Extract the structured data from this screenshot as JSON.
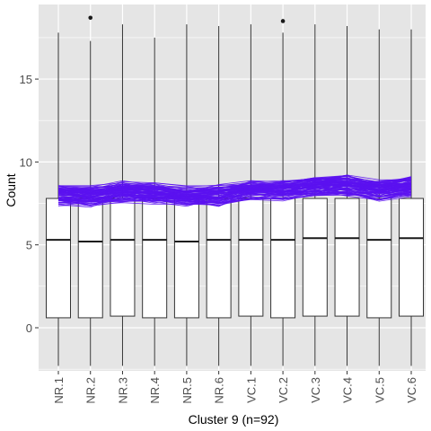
{
  "chart_data": {
    "type": "box",
    "title": "",
    "xlabel": "Cluster 9 (n=92)",
    "ylabel": "Count",
    "categories": [
      "NR.1",
      "NR.2",
      "NR.3",
      "NR.4",
      "NR.5",
      "NR.6",
      "VC.1",
      "VC.2",
      "VC.3",
      "VC.4",
      "VC.5",
      "VC.6"
    ],
    "ylim": [
      -2.6,
      19.5
    ],
    "yticks": [
      0,
      5,
      10,
      15
    ],
    "ytick_labels": [
      "0",
      "5",
      "10",
      "15"
    ],
    "grid": true,
    "panel_background": "#E5E5E5",
    "gridline_color": "#FFFFFF",
    "box_fill": "#FFFFFF",
    "box_stroke": "#333333",
    "boxes": [
      {
        "category": "NR.1",
        "whisker_low": -2.3,
        "q1": 0.6,
        "median": 5.3,
        "q3": 7.8,
        "whisker_high": 17.8,
        "outliers": []
      },
      {
        "category": "NR.2",
        "whisker_low": -2.3,
        "q1": 0.6,
        "median": 5.2,
        "q3": 7.8,
        "whisker_high": 17.3,
        "outliers": [
          18.7
        ]
      },
      {
        "category": "NR.3",
        "whisker_low": -2.3,
        "q1": 0.7,
        "median": 5.3,
        "q3": 7.8,
        "whisker_high": 18.3,
        "outliers": []
      },
      {
        "category": "NR.4",
        "whisker_low": -2.3,
        "q1": 0.6,
        "median": 5.3,
        "q3": 7.8,
        "whisker_high": 17.5,
        "outliers": []
      },
      {
        "category": "NR.5",
        "whisker_low": -2.3,
        "q1": 0.6,
        "median": 5.2,
        "q3": 7.8,
        "whisker_high": 18.3,
        "outliers": []
      },
      {
        "category": "NR.6",
        "whisker_low": -2.3,
        "q1": 0.6,
        "median": 5.3,
        "q3": 7.8,
        "whisker_high": 18.2,
        "outliers": []
      },
      {
        "category": "VC.1",
        "whisker_low": -2.3,
        "q1": 0.7,
        "median": 5.3,
        "q3": 7.8,
        "whisker_high": 18.3,
        "outliers": []
      },
      {
        "category": "VC.2",
        "whisker_low": -2.3,
        "q1": 0.6,
        "median": 5.3,
        "q3": 7.8,
        "whisker_high": 17.8,
        "outliers": [
          18.5
        ]
      },
      {
        "category": "VC.3",
        "whisker_low": -2.3,
        "q1": 0.7,
        "median": 5.4,
        "q3": 7.8,
        "whisker_high": 18.3,
        "outliers": []
      },
      {
        "category": "VC.4",
        "whisker_low": -2.3,
        "q1": 0.7,
        "median": 5.4,
        "q3": 7.8,
        "whisker_high": 18.2,
        "outliers": []
      },
      {
        "category": "VC.5",
        "whisker_low": -2.3,
        "q1": 0.6,
        "median": 5.3,
        "q3": 7.8,
        "whisker_high": 18.0,
        "outliers": []
      },
      {
        "category": "VC.6",
        "whisker_low": -2.3,
        "q1": 0.7,
        "median": 5.4,
        "q3": 7.8,
        "whisker_high": 18.0,
        "outliers": []
      }
    ],
    "overlay_lines": {
      "count": 92,
      "color": "#5B12F0",
      "mean_profile": [
        8.0,
        7.9,
        8.2,
        8.1,
        7.9,
        8.0,
        8.3,
        8.3,
        8.5,
        8.6,
        8.3,
        8.5
      ],
      "spread": 0.5
    }
  }
}
